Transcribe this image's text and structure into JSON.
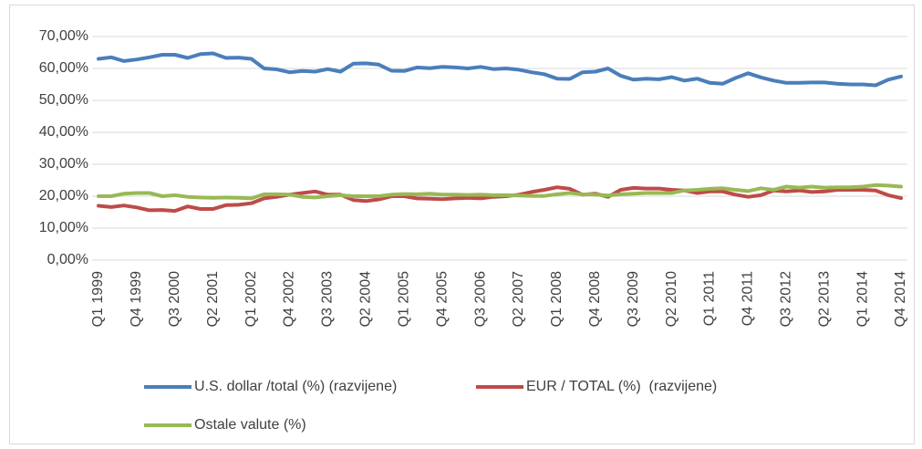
{
  "chart_data": {
    "type": "line",
    "categories": [
      "Q1 1999",
      null,
      null,
      "Q4 1999",
      null,
      null,
      "Q3 2000",
      null,
      null,
      "Q2 2001",
      null,
      null,
      "Q1 2002",
      null,
      null,
      "Q4 2002",
      null,
      null,
      "Q3 2003",
      null,
      null,
      "Q2 2004",
      null,
      null,
      "Q1 2005",
      null,
      null,
      "Q4 2005",
      null,
      null,
      "Q3 2006",
      null,
      null,
      "Q2 2007",
      null,
      null,
      "Q1 2008",
      null,
      null,
      "Q4 2008",
      null,
      null,
      "Q3 2009",
      null,
      null,
      "Q2 2010",
      null,
      null,
      "Q1 2011",
      null,
      null,
      "Q4 2011",
      null,
      null,
      "Q3 2012",
      null,
      null,
      "Q2 2013",
      null,
      null,
      "Q1 2014",
      null,
      null,
      "Q4 2014"
    ],
    "series": [
      {
        "name": "U.S. dollar /total (%) (razvijene)",
        "color": "#4a7ebb",
        "values": [
          63,
          63.5,
          62.3,
          62.8,
          63.5,
          64.3,
          64.3,
          63.3,
          64.5,
          64.7,
          63.3,
          63.4,
          63,
          60,
          59.7,
          58.8,
          59.2,
          59,
          59.8,
          59,
          61.5,
          61.6,
          61.2,
          59.3,
          59.2,
          60.3,
          60.1,
          60.5,
          60.3,
          60,
          60.5,
          59.8,
          60,
          59.6,
          58.8,
          58.2,
          56.8,
          56.7,
          58.8,
          59,
          60,
          57.7,
          56.5,
          56.8,
          56.6,
          57.3,
          56.2,
          56.8,
          55.5,
          55.2,
          57,
          58.5,
          57.2,
          56.2,
          55.5,
          55.5,
          55.6,
          55.6,
          55.2,
          55,
          55,
          54.7,
          56.5,
          57.5
        ]
      },
      {
        "name": "EUR / TOTAL (%)  (razvijene)",
        "color": "#be4b48",
        "values": [
          17,
          16.6,
          17.1,
          16.5,
          15.6,
          15.7,
          15.4,
          16.8,
          16,
          16,
          17.2,
          17.3,
          17.8,
          19.3,
          19.8,
          20.5,
          21,
          21.5,
          20.5,
          20.5,
          18.8,
          18.5,
          19,
          20,
          20,
          19.3,
          19.2,
          19.1,
          19.3,
          19.5,
          19.3,
          19.8,
          20,
          20.5,
          21.3,
          22,
          22.8,
          22.3,
          20.5,
          20.8,
          19.8,
          22,
          22.6,
          22.4,
          22.4,
          22,
          21.8,
          21,
          21.5,
          21.5,
          20.5,
          19.8,
          20.3,
          21.8,
          21.5,
          21.8,
          21.3,
          21.5,
          22,
          22,
          22,
          21.8,
          20.3,
          19.4
        ]
      },
      {
        "name": "Ostale valute (%)",
        "color": "#98b954",
        "values": [
          20,
          20,
          20.8,
          21,
          21,
          20,
          20.3,
          19.8,
          19.6,
          19.5,
          19.6,
          19.5,
          19.3,
          20.6,
          20.6,
          20.5,
          19.8,
          19.6,
          20,
          20.3,
          20,
          20,
          20,
          20.5,
          20.7,
          20.6,
          20.8,
          20.5,
          20.5,
          20.4,
          20.5,
          20.3,
          20.3,
          20.2,
          20.1,
          20.1,
          20.6,
          21,
          20.6,
          20.5,
          20.2,
          20.6,
          20.8,
          21,
          21,
          21,
          21.8,
          22,
          22.3,
          22.5,
          22,
          21.6,
          22.5,
          22,
          23,
          22.7,
          23,
          22.7,
          22.8,
          22.8,
          23,
          23.5,
          23.3,
          23
        ]
      }
    ],
    "ylim": [
      0,
      70
    ],
    "yticks": [
      {
        "value": 0,
        "label": "0,00%"
      },
      {
        "value": 10,
        "label": "10,00%"
      },
      {
        "value": 20,
        "label": "20,00%"
      },
      {
        "value": 30,
        "label": "30,00%"
      },
      {
        "value": 40,
        "label": "40,00%"
      },
      {
        "value": 50,
        "label": "50,00%"
      },
      {
        "value": 60,
        "label": "60,00%"
      },
      {
        "value": 70,
        "label": "70,00%"
      }
    ],
    "grid": true
  }
}
